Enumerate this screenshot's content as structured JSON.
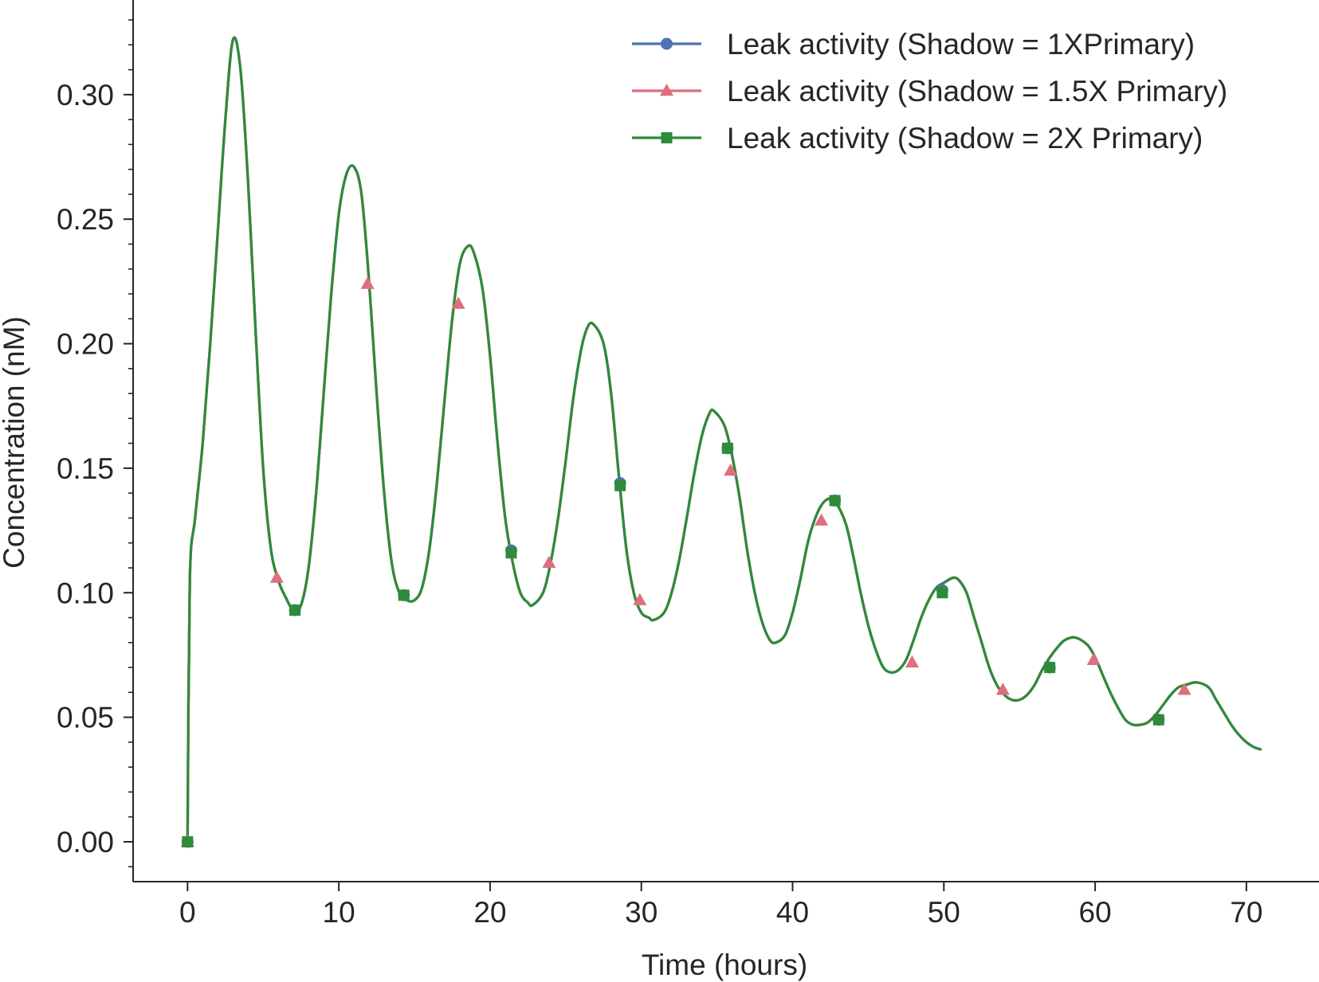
{
  "chart_data": {
    "type": "line",
    "title": "",
    "xlabel": "Time (hours)",
    "ylabel": "Concentration (nM)",
    "xlim": [
      -3.6,
      74.8
    ],
    "ylim": [
      -0.016,
      0.338
    ],
    "xticks": [
      0,
      10,
      20,
      30,
      40,
      50,
      60,
      70
    ],
    "xtick_labels": [
      "0",
      "10",
      "20",
      "30",
      "40",
      "50",
      "60",
      "70"
    ],
    "yticks": [
      0.0,
      0.05,
      0.1,
      0.15,
      0.2,
      0.25,
      0.3
    ],
    "ytick_labels": [
      "0.00",
      "0.05",
      "0.10",
      "0.15",
      "0.20",
      "0.25",
      "0.30"
    ],
    "grid": false,
    "legend_position": "top-right",
    "curve": {
      "x": [
        0,
        0.15,
        0.5,
        1.0,
        1.5,
        2.0,
        2.5,
        3.0,
        3.5,
        4.0,
        4.5,
        5.0,
        5.5,
        6.0,
        6.5,
        7.0,
        7.5,
        8.0,
        8.5,
        9.0,
        9.5,
        10.0,
        10.5,
        11.0,
        11.5,
        12.0,
        12.5,
        13.0,
        13.5,
        14.0,
        14.5,
        15.0,
        15.5,
        16.0,
        16.5,
        17.0,
        17.5,
        18.0,
        18.5,
        18.9,
        19.5,
        20.0,
        20.5,
        21.0,
        21.5,
        22.0,
        22.5,
        22.8,
        23.5,
        24.0,
        24.5,
        25.0,
        25.5,
        26.0,
        26.4,
        26.8,
        27.5,
        28.0,
        28.5,
        29.0,
        29.5,
        30.0,
        30.5,
        30.8,
        31.5,
        32.0,
        32.5,
        33.0,
        33.5,
        34.0,
        34.5,
        34.8,
        35.5,
        36.0,
        36.5,
        37.0,
        37.5,
        38.0,
        38.5,
        38.9,
        39.5,
        40.0,
        40.5,
        41.0,
        41.5,
        42.0,
        42.5,
        42.8,
        43.5,
        44.0,
        44.5,
        45.0,
        45.5,
        46.0,
        46.5,
        47.0,
        47.5,
        48.0,
        48.5,
        49.0,
        49.5,
        50.0,
        50.6,
        51.0,
        51.5,
        52.0,
        52.5,
        53.0,
        53.5,
        54.0,
        54.5,
        55.0,
        55.5,
        56.0,
        56.5,
        57.0,
        57.5,
        58.0,
        58.7,
        59.5,
        60.0,
        60.5,
        61.0,
        61.5,
        62.0,
        62.5,
        63.0,
        63.5,
        64.0,
        64.5,
        65.0,
        65.5,
        66.0,
        66.7,
        67.5,
        68.0,
        68.5,
        69.0,
        69.5,
        70.0,
        70.5,
        71.0
      ],
      "y": [
        0.0,
        0.105,
        0.13,
        0.16,
        0.2,
        0.245,
        0.29,
        0.322,
        0.31,
        0.265,
        0.205,
        0.15,
        0.118,
        0.105,
        0.098,
        0.093,
        0.095,
        0.11,
        0.14,
        0.18,
        0.22,
        0.252,
        0.268,
        0.271,
        0.26,
        0.225,
        0.18,
        0.14,
        0.112,
        0.1,
        0.097,
        0.097,
        0.102,
        0.118,
        0.145,
        0.178,
        0.21,
        0.232,
        0.239,
        0.237,
        0.222,
        0.195,
        0.16,
        0.13,
        0.112,
        0.1,
        0.096,
        0.095,
        0.1,
        0.112,
        0.13,
        0.153,
        0.178,
        0.197,
        0.206,
        0.208,
        0.2,
        0.18,
        0.148,
        0.118,
        0.1,
        0.092,
        0.09,
        0.089,
        0.092,
        0.1,
        0.113,
        0.13,
        0.148,
        0.163,
        0.172,
        0.173,
        0.167,
        0.155,
        0.138,
        0.117,
        0.1,
        0.088,
        0.081,
        0.08,
        0.083,
        0.092,
        0.105,
        0.12,
        0.13,
        0.136,
        0.138,
        0.137,
        0.128,
        0.115,
        0.1,
        0.087,
        0.077,
        0.07,
        0.068,
        0.069,
        0.073,
        0.081,
        0.09,
        0.097,
        0.102,
        0.104,
        0.106,
        0.105,
        0.1,
        0.09,
        0.08,
        0.07,
        0.063,
        0.059,
        0.057,
        0.057,
        0.059,
        0.063,
        0.069,
        0.074,
        0.078,
        0.081,
        0.082,
        0.079,
        0.074,
        0.067,
        0.06,
        0.054,
        0.049,
        0.047,
        0.047,
        0.048,
        0.051,
        0.055,
        0.059,
        0.062,
        0.063,
        0.064,
        0.062,
        0.057,
        0.052,
        0.047,
        0.043,
        0.04,
        0.038,
        0.037
      ]
    },
    "series": [
      {
        "name": "Leak activity (Shadow = 1XPrimary)",
        "color": "#4c72b0",
        "marker": "circle",
        "markers": {
          "x": [
            0,
            7.1,
            14.3,
            21.4,
            28.6,
            35.7,
            42.8,
            49.9,
            57.0,
            64.2
          ],
          "y": [
            0.0,
            0.093,
            0.099,
            0.117,
            0.144,
            0.158,
            0.137,
            0.101,
            0.07,
            0.049
          ]
        }
      },
      {
        "name": "Leak activity (Shadow = 1.5X Primary)",
        "color": "#dd6f7e",
        "marker": "triangle",
        "markers": {
          "x": [
            0,
            5.9,
            11.9,
            17.9,
            23.9,
            29.9,
            35.9,
            41.9,
            47.9,
            53.9,
            59.9,
            65.9
          ],
          "y": [
            0.0,
            0.106,
            0.224,
            0.216,
            0.112,
            0.097,
            0.149,
            0.129,
            0.072,
            0.061,
            0.073,
            0.061
          ]
        }
      },
      {
        "name": "Leak activity (Shadow = 2X Primary)",
        "color": "#2e8b3a",
        "marker": "square",
        "markers": {
          "x": [
            0,
            7.1,
            14.3,
            21.4,
            28.6,
            35.7,
            42.8,
            49.9,
            57.0,
            64.2
          ],
          "y": [
            0.0,
            0.093,
            0.099,
            0.116,
            0.143,
            0.158,
            0.137,
            0.1,
            0.07,
            0.049
          ]
        }
      }
    ]
  }
}
